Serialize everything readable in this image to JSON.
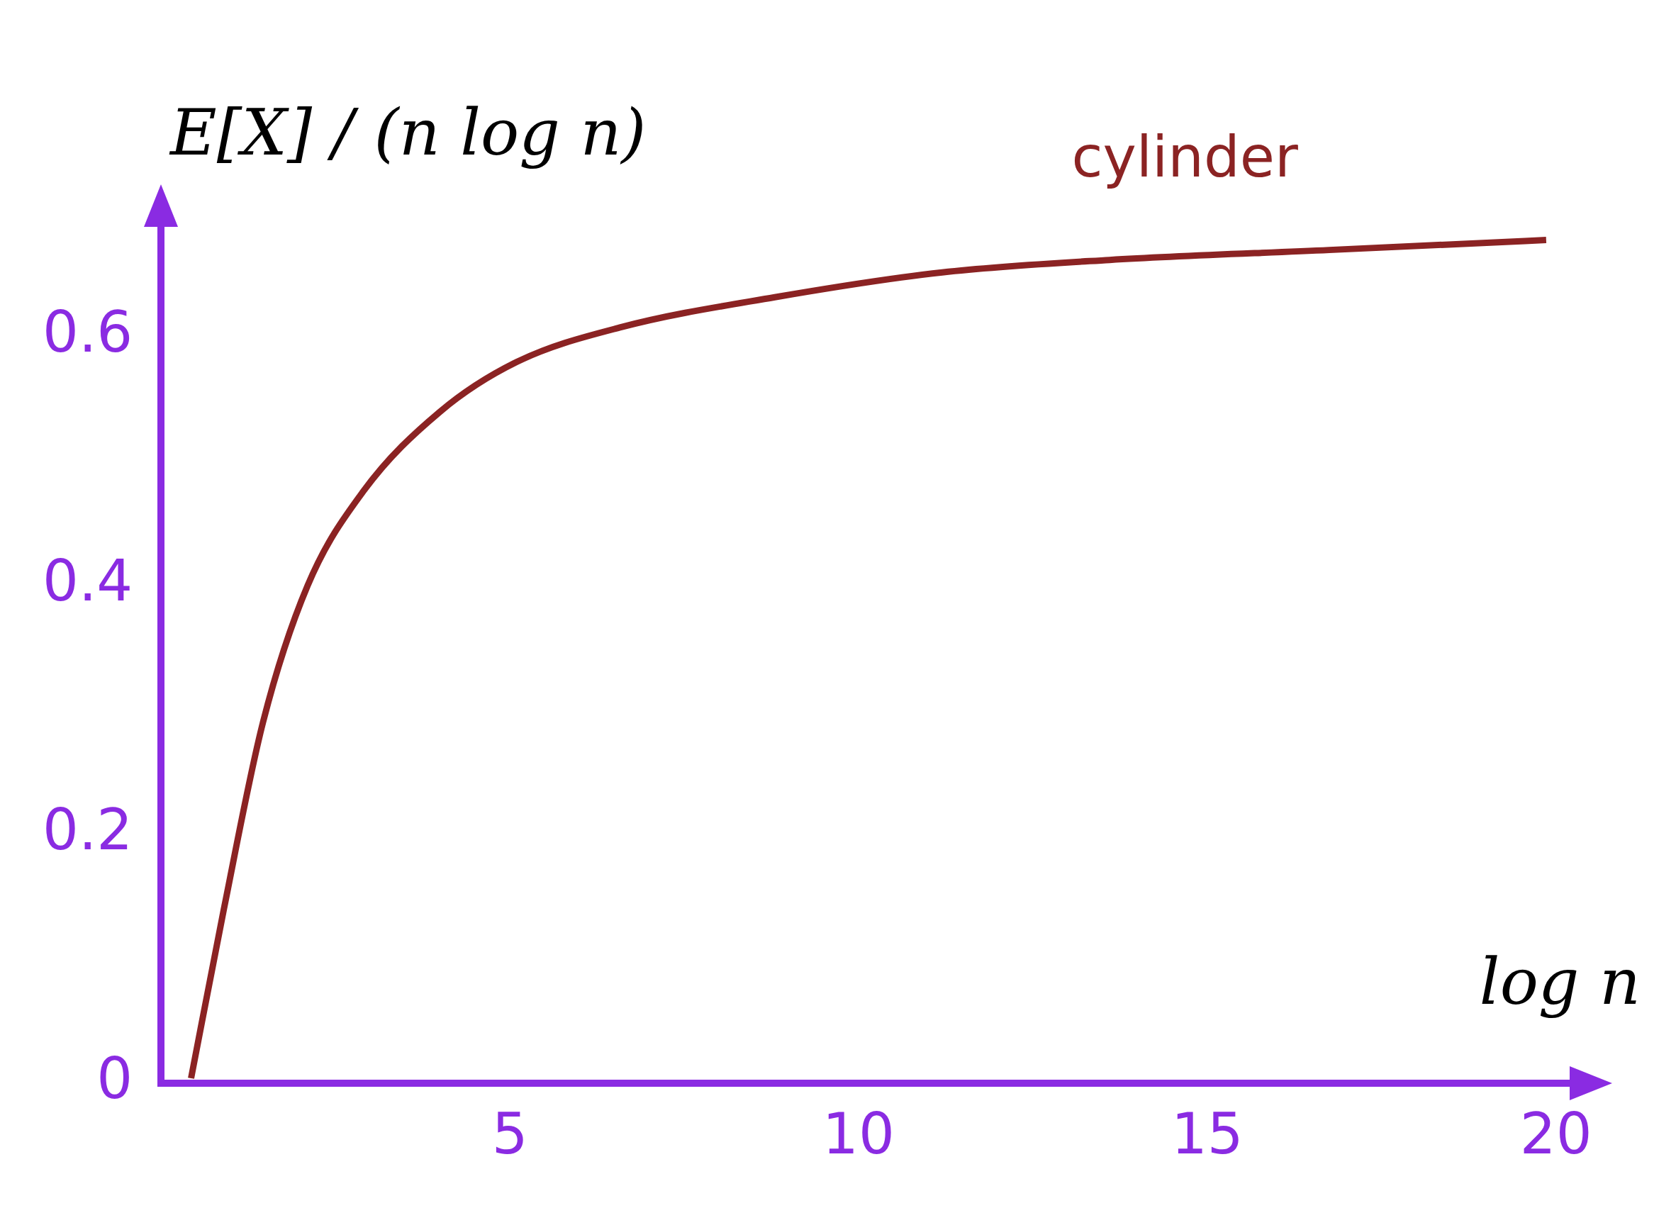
{
  "chart_data": {
    "type": "line",
    "ylabel": "E[X] / (n log n)",
    "xlabel": "log n",
    "xlim": [
      0,
      20.4
    ],
    "xticks": [
      5,
      10,
      15,
      20
    ],
    "ylim": [
      0,
      0.7
    ],
    "yticks": [
      0,
      0.2,
      0.4,
      0.6
    ],
    "grid": false,
    "legend": false,
    "marker": "none",
    "line_style": "solid",
    "series": [
      {
        "name": "cylinder",
        "color": "#8b2323",
        "x": [
          0.43,
          0.9,
          1.46,
          2.1,
          2.9,
          4.0,
          5.1,
          6.6,
          8.8,
          11.2,
          13.6,
          16.75,
          19.86
        ],
        "values": [
          0.004,
          0.14,
          0.29,
          0.4,
          0.476,
          0.54,
          0.58,
          0.608,
          0.632,
          0.652,
          0.662,
          0.67,
          0.678
        ]
      }
    ]
  }
}
